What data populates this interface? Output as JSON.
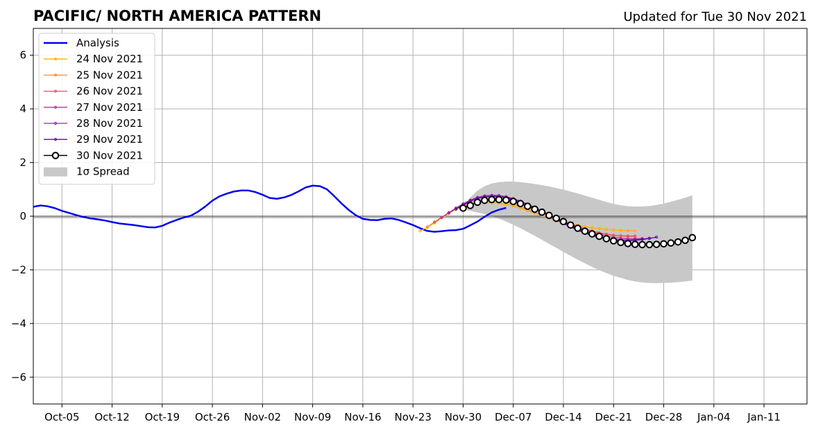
{
  "chart_data": {
    "type": "line",
    "title": "PACIFIC/ NORTH AMERICA PATTERN",
    "subtitle": "Updated for Tue 30 Nov 2021",
    "xlabel": "",
    "ylabel": "",
    "ylim": [
      -7,
      7
    ],
    "yticks": [
      -6,
      -4,
      -2,
      0,
      2,
      4,
      6
    ],
    "ytick_labels": [
      "−6",
      "−4",
      "−2",
      "0",
      "2",
      "4",
      "6"
    ],
    "xlim": [
      "2021-10-01",
      "2022-01-17"
    ],
    "xticks": [
      {
        "date": "2021-10-05",
        "label": "Oct-05"
      },
      {
        "date": "2021-10-12",
        "label": "Oct-12"
      },
      {
        "date": "2021-10-19",
        "label": "Oct-19"
      },
      {
        "date": "2021-10-26",
        "label": "Oct-26"
      },
      {
        "date": "2021-11-02",
        "label": "Nov-02"
      },
      {
        "date": "2021-11-09",
        "label": "Nov-09"
      },
      {
        "date": "2021-11-16",
        "label": "Nov-16"
      },
      {
        "date": "2021-11-23",
        "label": "Nov-23"
      },
      {
        "date": "2021-11-30",
        "label": "Nov-30"
      },
      {
        "date": "2021-12-07",
        "label": "Dec-07"
      },
      {
        "date": "2021-12-14",
        "label": "Dec-14"
      },
      {
        "date": "2021-12-21",
        "label": "Dec-21"
      },
      {
        "date": "2021-12-28",
        "label": "Dec-28"
      },
      {
        "date": "2022-01-04",
        "label": "Jan-04"
      },
      {
        "date": "2022-01-11",
        "label": "Jan-11"
      }
    ],
    "grid": true,
    "zero_line": true,
    "legend_position": "upper-left",
    "legend": [
      "Analysis",
      "24 Nov 2021",
      "25 Nov 2021",
      "26 Nov 2021",
      "27 Nov 2021",
      "28 Nov 2021",
      "29 Nov 2021",
      "30 Nov 2021",
      "1σ Spread"
    ],
    "analysis": {
      "name": "Analysis",
      "color": "#0000ee",
      "start": "2021-10-01",
      "values": [
        0.35,
        0.4,
        0.37,
        0.3,
        0.2,
        0.12,
        0.04,
        -0.03,
        -0.08,
        -0.12,
        -0.16,
        -0.22,
        -0.27,
        -0.3,
        -0.33,
        -0.37,
        -0.41,
        -0.42,
        -0.36,
        -0.24,
        -0.14,
        -0.05,
        0.02,
        0.17,
        0.36,
        0.58,
        0.74,
        0.84,
        0.92,
        0.96,
        0.96,
        0.9,
        0.8,
        0.68,
        0.65,
        0.7,
        0.79,
        0.92,
        1.07,
        1.14,
        1.12,
        1.0,
        0.75,
        0.48,
        0.24,
        0.04,
        -0.1,
        -0.14,
        -0.15,
        -0.1,
        -0.08,
        -0.14,
        -0.23,
        -0.33,
        -0.45,
        -0.55,
        -0.58,
        -0.56,
        -0.53,
        -0.52,
        -0.47,
        -0.34,
        -0.2,
        -0.02,
        0.14,
        0.24,
        0.31
      ]
    },
    "forecasts": [
      {
        "name": "24 Nov 2021",
        "color": "#ffb000",
        "start": "2021-11-24",
        "values": [
          -0.55,
          -0.42,
          -0.25,
          -0.06,
          0.1,
          0.25,
          0.36,
          0.44,
          0.49,
          0.51,
          0.5,
          0.48,
          0.44,
          0.38,
          0.3,
          0.21,
          0.12,
          0.04,
          -0.05,
          -0.13,
          -0.21,
          -0.28,
          -0.34,
          -0.39,
          -0.43,
          -0.46,
          -0.49,
          -0.51,
          -0.53,
          -0.54,
          -0.55
        ]
      },
      {
        "name": "25 Nov 2021",
        "color": "#f58a3a",
        "start": "2021-11-25",
        "values": [
          -0.4,
          -0.22,
          -0.04,
          0.12,
          0.28,
          0.41,
          0.52,
          0.59,
          0.62,
          0.62,
          0.59,
          0.53,
          0.45,
          0.35,
          0.24,
          0.14,
          0.03,
          -0.07,
          -0.17,
          -0.26,
          -0.35,
          -0.43,
          -0.51,
          -0.58,
          -0.64,
          -0.69,
          -0.72,
          -0.74,
          -0.75,
          -0.76
        ]
      },
      {
        "name": "26 Nov 2021",
        "color": "#e0506a",
        "start": "2021-11-26",
        "values": [
          -0.22,
          -0.04,
          0.13,
          0.3,
          0.45,
          0.57,
          0.66,
          0.71,
          0.73,
          0.72,
          0.68,
          0.61,
          0.52,
          0.41,
          0.29,
          0.17,
          0.05,
          -0.07,
          -0.18,
          -0.29,
          -0.38,
          -0.47,
          -0.55,
          -0.62,
          -0.67,
          -0.71,
          -0.73,
          -0.74,
          -0.74
        ]
      },
      {
        "name": "27 Nov 2021",
        "color": "#c0309a",
        "start": "2021-11-27",
        "values": [
          -0.05,
          0.13,
          0.3,
          0.46,
          0.59,
          0.69,
          0.75,
          0.77,
          0.76,
          0.72,
          0.65,
          0.56,
          0.45,
          0.33,
          0.2,
          0.07,
          -0.06,
          -0.18,
          -0.3,
          -0.41,
          -0.51,
          -0.6,
          -0.68,
          -0.74,
          -0.79,
          -0.82,
          -0.84,
          -0.84,
          -0.83
        ]
      },
      {
        "name": "28 Nov 2021",
        "color": "#9a20b0",
        "start": "2021-11-28",
        "values": [
          0.12,
          0.3,
          0.46,
          0.6,
          0.7,
          0.76,
          0.78,
          0.77,
          0.73,
          0.66,
          0.56,
          0.44,
          0.31,
          0.17,
          0.03,
          -0.11,
          -0.24,
          -0.37,
          -0.49,
          -0.59,
          -0.68,
          -0.76,
          -0.82,
          -0.86,
          -0.88,
          -0.88,
          -0.87,
          -0.85,
          -0.82
        ]
      },
      {
        "name": "29 Nov 2021",
        "color": "#5a0aa8",
        "start": "2021-11-29",
        "values": [
          0.26,
          0.42,
          0.56,
          0.66,
          0.72,
          0.74,
          0.73,
          0.69,
          0.62,
          0.53,
          0.42,
          0.29,
          0.15,
          0.01,
          -0.13,
          -0.27,
          -0.4,
          -0.52,
          -0.63,
          -0.72,
          -0.8,
          -0.86,
          -0.9,
          -0.92,
          -0.92,
          -0.9,
          -0.87,
          -0.83,
          -0.78
        ]
      },
      {
        "name": "30 Nov 2021",
        "color": "#000000",
        "start": "2021-11-30",
        "marker": "open-circle",
        "values": [
          0.3,
          0.4,
          0.52,
          0.59,
          0.62,
          0.62,
          0.6,
          0.55,
          0.47,
          0.37,
          0.26,
          0.15,
          0.03,
          -0.08,
          -0.2,
          -0.33,
          -0.45,
          -0.56,
          -0.66,
          -0.75,
          -0.84,
          -0.92,
          -0.98,
          -1.02,
          -1.05,
          -1.06,
          -1.06,
          -1.05,
          -1.03,
          -1.0,
          -0.96,
          -0.9,
          -0.8
        ]
      }
    ],
    "spread": {
      "name": "1σ Spread",
      "color": "#c8c8c8",
      "start": "2021-11-30",
      "upper": [
        0.3,
        0.7,
        0.95,
        1.12,
        1.22,
        1.27,
        1.29,
        1.29,
        1.27,
        1.24,
        1.2,
        1.16,
        1.11,
        1.05,
        0.99,
        0.92,
        0.85,
        0.77,
        0.69,
        0.61,
        0.53,
        0.46,
        0.41,
        0.37,
        0.36,
        0.36,
        0.38,
        0.42,
        0.47,
        0.54,
        0.61,
        0.69,
        0.78
      ],
      "lower": [
        0.25,
        0.2,
        0.14,
        0.08,
        0.0,
        -0.09,
        -0.2,
        -0.32,
        -0.45,
        -0.59,
        -0.73,
        -0.88,
        -1.03,
        -1.18,
        -1.33,
        -1.48,
        -1.62,
        -1.76,
        -1.89,
        -2.01,
        -2.12,
        -2.22,
        -2.3,
        -2.38,
        -2.43,
        -2.47,
        -2.49,
        -2.5,
        -2.49,
        -2.48,
        -2.46,
        -2.43,
        -2.4
      ]
    }
  }
}
